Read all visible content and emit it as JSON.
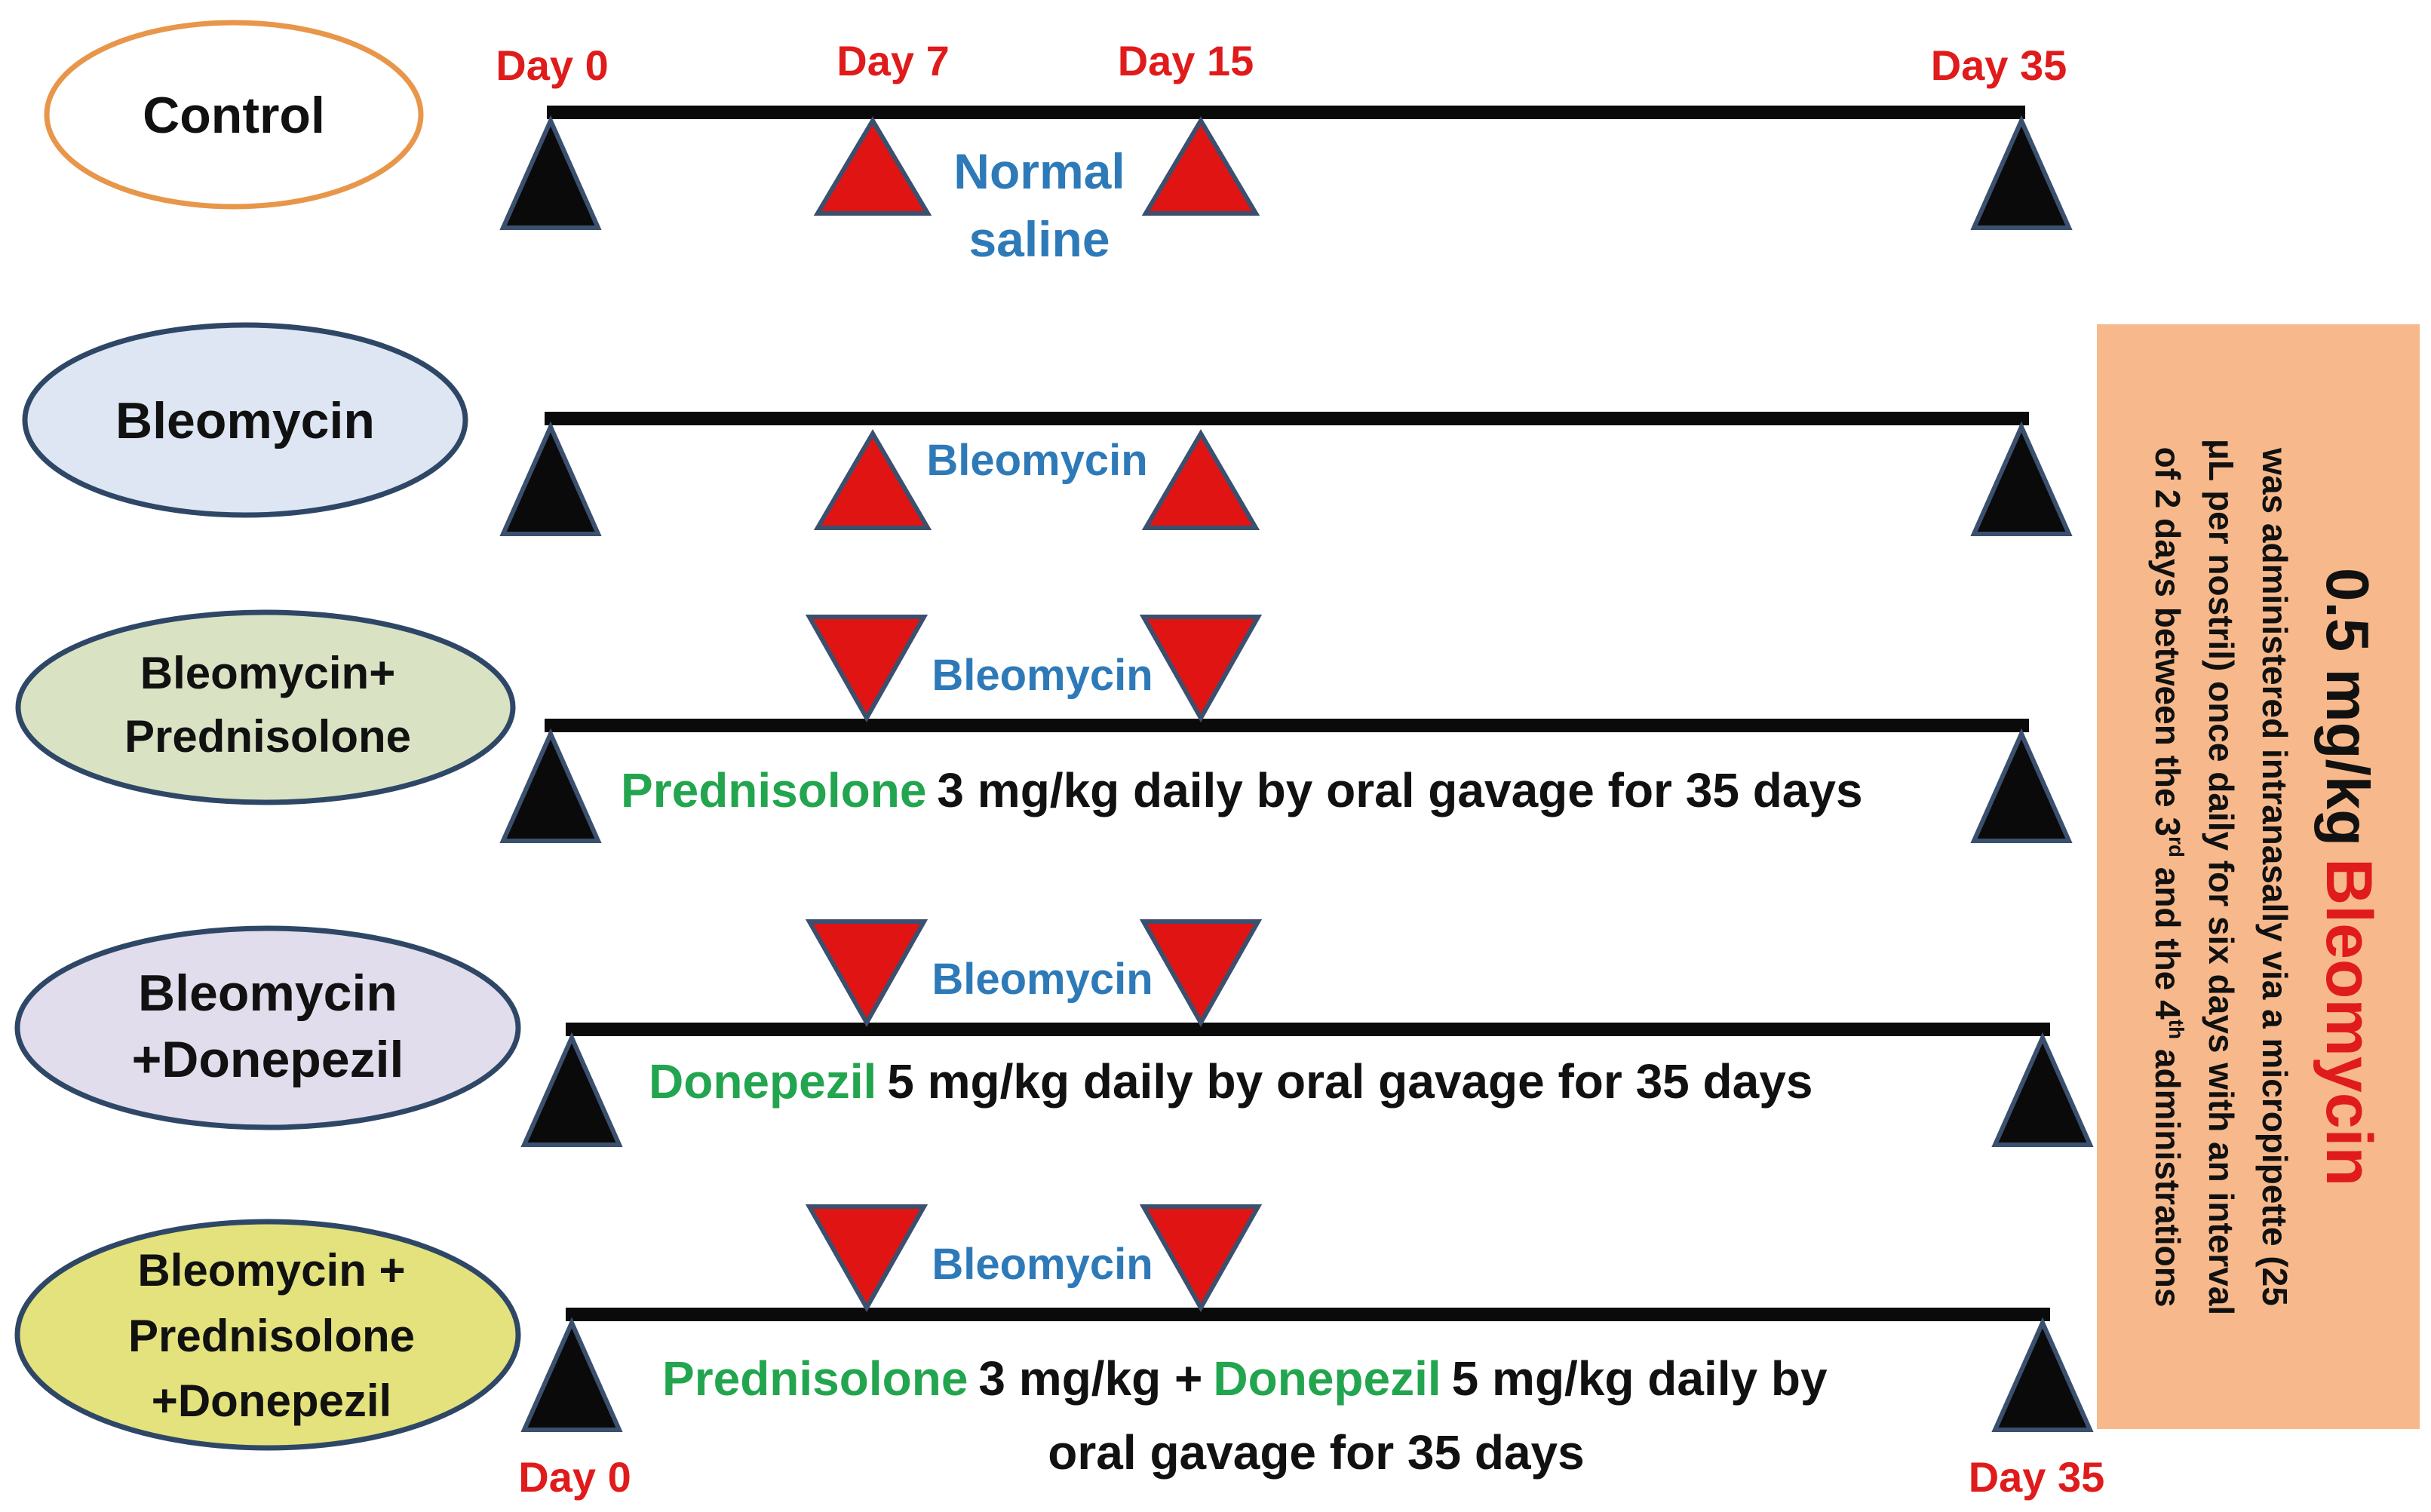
{
  "days": {
    "d0": "Day 0",
    "d7": "Day 7",
    "d15": "Day 15",
    "d35": "Day 35"
  },
  "groups": {
    "control": "Control",
    "bleo": "Bleomycin",
    "bp_l1": "Bleomycin+",
    "bp_l2": "Prednisolone",
    "bd_l1": "Bleomycin",
    "bd_l2": "+Donepezil",
    "bpd_l1": "Bleomycin +",
    "bpd_l2": "Prednisolone",
    "bpd_l3": "+Donepezil"
  },
  "timeline_labels": {
    "normal_l1": "Normal",
    "normal_l2": "saline",
    "bleomycin": "Bleomycin"
  },
  "regimens": {
    "pred_name": "Prednisolone",
    "pred_rest": "3 mg/kg daily by oral gavage for 35 days",
    "done_name": "Donepezil",
    "done_rest": "5 mg/kg daily by oral gavage for 35 days",
    "combo_pred_name": "Prednisolone",
    "combo_mid": "3 mg/kg +",
    "combo_done_name": "Donepezil",
    "combo_rest": "5 mg/kg daily by",
    "combo_line2": "oral gavage for 35 days"
  },
  "side_note": {
    "dose": "0.5 mg/kg",
    "drug": "Bleomycin",
    "line1": "was administered intranasally via a micropipette (25",
    "line2": "μL per nostril) once daily for six days with an interval",
    "line3a": "of 2 days between the 3",
    "sup1": "rd",
    "line3b": " and the 4",
    "sup2": "th",
    "line3c": " administrations"
  },
  "colors": {
    "day_label": "#e01b1b",
    "drug_label": "#2e7ab8",
    "green_drug": "#22a54e",
    "control_ellipse_border": "#e8964a",
    "ellipse_border": "#2f4766",
    "bleo_fill": "#dde6f2",
    "bp_fill": "#d9e3c4",
    "bd_fill": "#e2ddec",
    "bpd_fill": "#e3e27c",
    "side_box": "#f7b98b",
    "red_triangle": "#e11414",
    "black_triangle": "#0a0a0a",
    "triangle_outline": "#3a506e"
  }
}
